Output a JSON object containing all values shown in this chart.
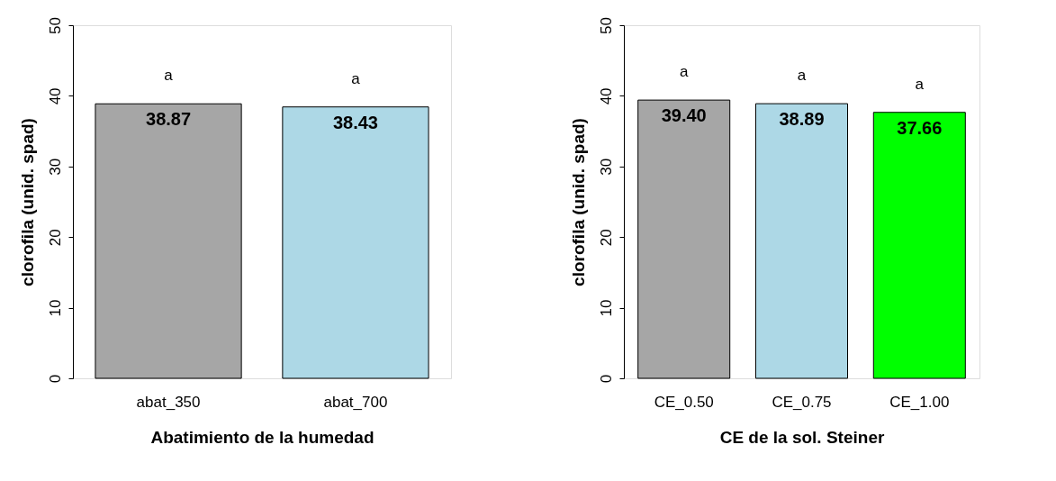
{
  "chart_data": [
    {
      "type": "bar",
      "xlabel": "Abatimiento de la humedad",
      "ylabel": "clorofila (unid. spad)",
      "categories": [
        "abat_350",
        "abat_700"
      ],
      "values": [
        38.87,
        38.43
      ],
      "colors": [
        "#a6a6a6",
        "#add8e6"
      ],
      "value_labels": [
        "38.87",
        "38.43"
      ],
      "ylim": [
        0,
        50
      ],
      "yticks": [
        0,
        10,
        20,
        30,
        40,
        50
      ],
      "annotations": [
        "a",
        "a"
      ]
    },
    {
      "type": "bar",
      "xlabel": "CE de la sol. Steiner",
      "ylabel": "clorofila (unid. spad)",
      "categories": [
        "CE_0.50",
        "CE_0.75",
        "CE_1.00"
      ],
      "values": [
        39.4,
        38.89,
        37.66
      ],
      "colors": [
        "#a6a6a6",
        "#add8e6",
        "#00ff00"
      ],
      "value_labels": [
        "39.40",
        "38.89",
        "37.66"
      ],
      "ylim": [
        0,
        50
      ],
      "yticks": [
        0,
        10,
        20,
        30,
        40,
        50
      ],
      "annotations": [
        "a",
        "a",
        "a"
      ]
    }
  ]
}
